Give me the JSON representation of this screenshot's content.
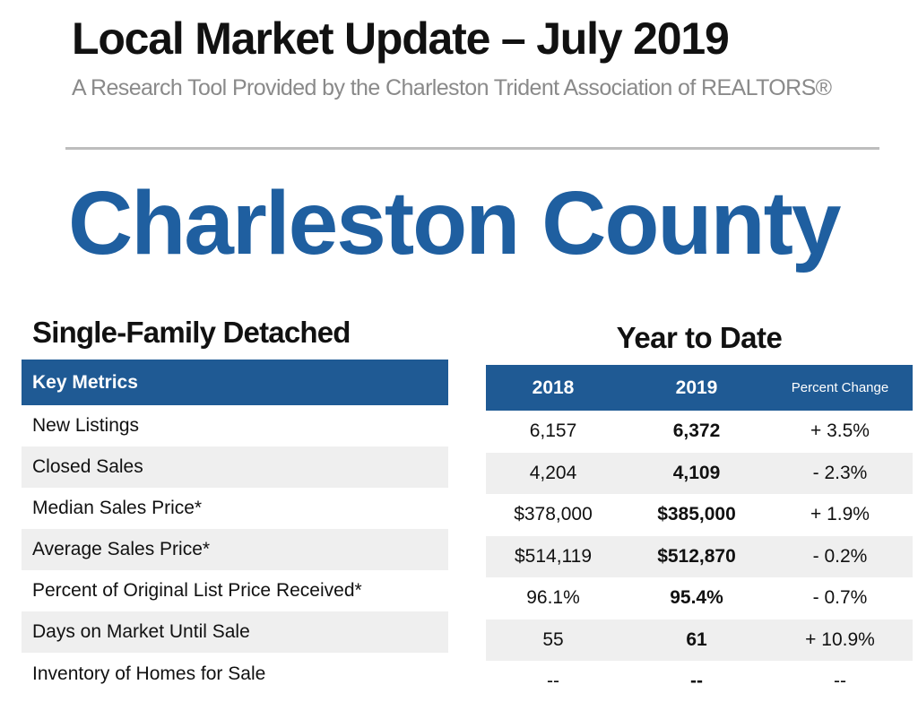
{
  "header": {
    "title": "Local Market Update – July 2019",
    "subtitle": "A Research Tool Provided by the Charleston Trident Association of REALTORS®"
  },
  "county": "Charleston County",
  "section": {
    "title": "Single-Family Detached",
    "ytd_title": "Year to Date"
  },
  "table": {
    "metrics_header": "Key Metrics",
    "col_2018": "2018",
    "col_2019": "2019",
    "col_pct": "Percent Change",
    "rows": [
      {
        "metric": "New Listings",
        "v2018": "6,157",
        "v2019": "6,372",
        "pct": "+ 3.5%"
      },
      {
        "metric": "Closed Sales",
        "v2018": "4,204",
        "v2019": "4,109",
        "pct": "- 2.3%"
      },
      {
        "metric": "Median Sales Price*",
        "v2018": "$378,000",
        "v2019": "$385,000",
        "pct": "+ 1.9%"
      },
      {
        "metric": "Average Sales Price*",
        "v2018": "$514,119",
        "v2019": "$512,870",
        "pct": "- 0.2%"
      },
      {
        "metric": "Percent of Original List Price Received*",
        "v2018": "96.1%",
        "v2019": "95.4%",
        "pct": "- 0.7%"
      },
      {
        "metric": "Days on Market Until Sale",
        "v2018": "55",
        "v2019": "61",
        "pct": "+ 10.9%"
      },
      {
        "metric": "Inventory of Homes for Sale",
        "v2018": "--",
        "v2019": "--",
        "pct": "--"
      }
    ]
  },
  "colors": {
    "brand_blue": "#1f5fa0",
    "header_bar": "#1f5a94",
    "row_shade": "#efefef",
    "subtitle_gray": "#8a8a8a"
  }
}
